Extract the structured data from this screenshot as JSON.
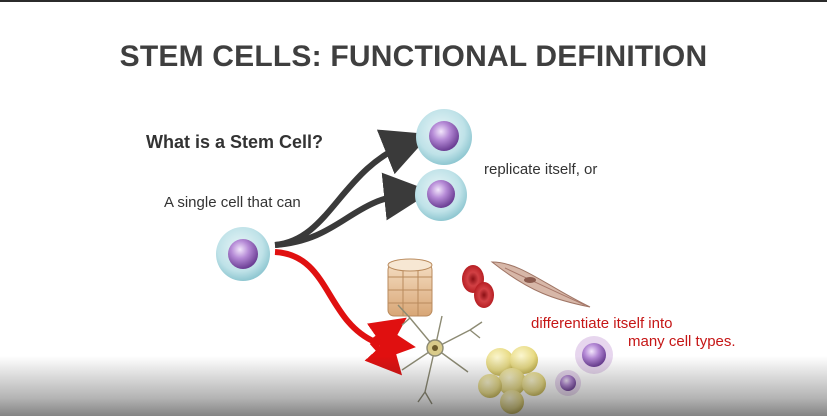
{
  "slide": {
    "title": "STEM CELLS: FUNCTIONAL DEFINITION",
    "question": "What is a Stem Cell?",
    "subject_text": "A single cell that can",
    "replicate_text": "replicate itself, or",
    "differentiate_line1": "differentiate itself into",
    "differentiate_line2": "many cell types."
  },
  "colors": {
    "title": "#3f3f3f",
    "dark_arrow": "#3a3a3a",
    "red_arrow": "#e01010",
    "red_text": "#c51616",
    "cell_membrane": "#a9d6dd",
    "nucleus": "#9a6fc0"
  }
}
